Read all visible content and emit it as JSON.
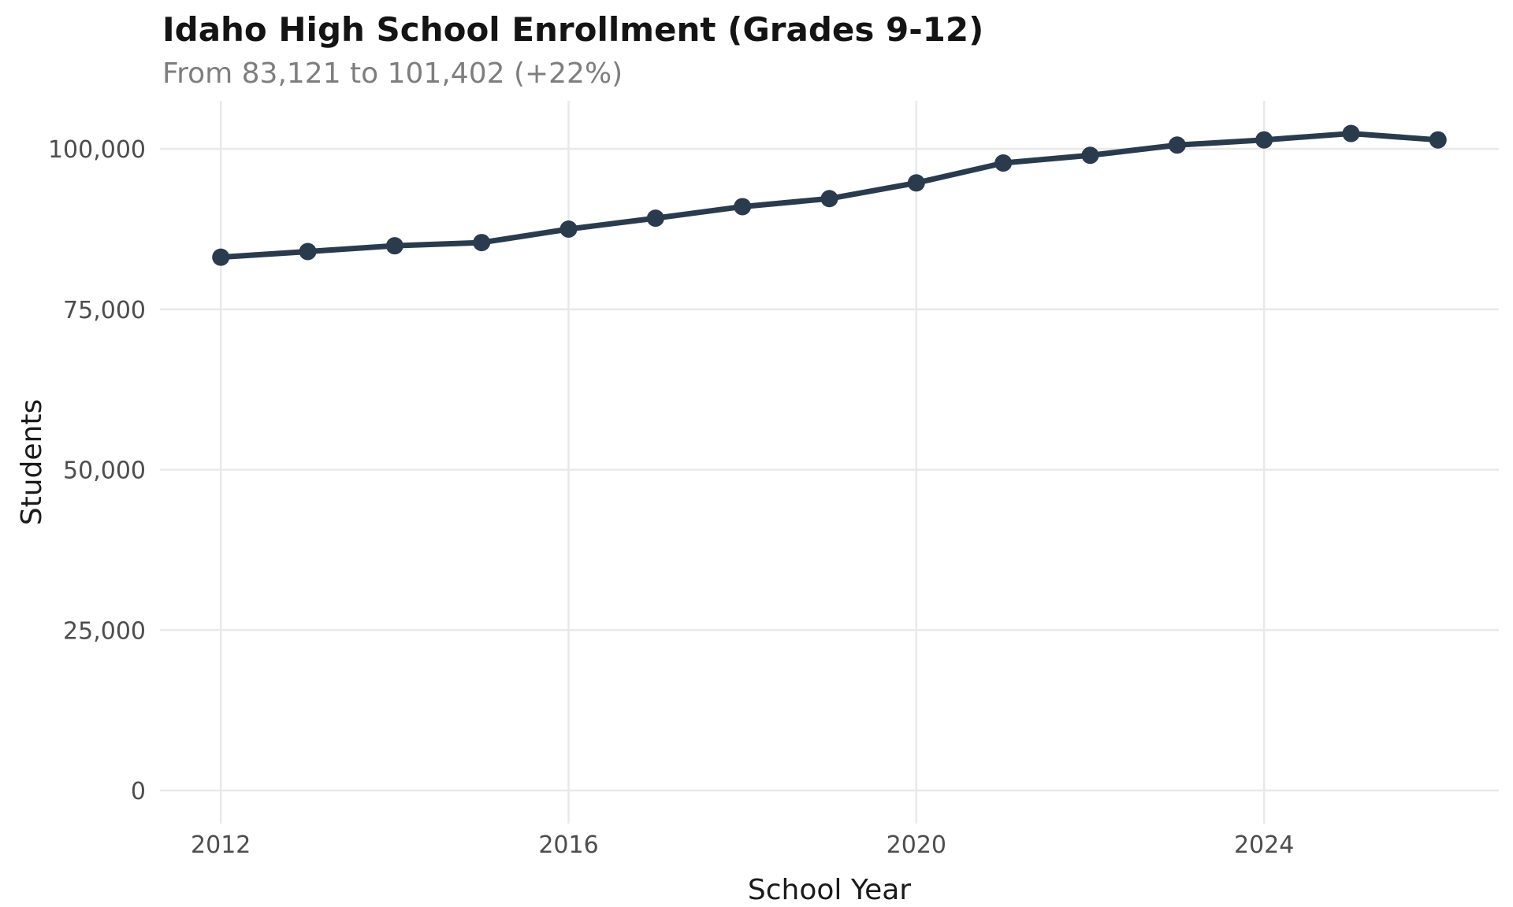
{
  "header": {
    "title": "Idaho High School Enrollment (Grades 9-12)",
    "subtitle": "From 83,121 to 101,402 (+22%)"
  },
  "chart_data": {
    "type": "line",
    "title": "Idaho High School Enrollment (Grades 9-12)",
    "subtitle": "From 83,121 to 101,402 (+22%)",
    "xlabel": "School Year",
    "ylabel": "Students",
    "series_name": "Enrollment (Grades 9-12)",
    "x": [
      2012,
      2013,
      2014,
      2015,
      2016,
      2017,
      2018,
      2019,
      2020,
      2021,
      2022,
      2023,
      2024,
      2025,
      2026
    ],
    "values": [
      83121,
      84000,
      84900,
      85400,
      87500,
      89200,
      91000,
      92250,
      94700,
      97800,
      99000,
      100600,
      101400,
      102400,
      101402
    ],
    "start_value": 83121,
    "end_value": 101402,
    "percent_change": "+22%",
    "xticks": [
      2012,
      2016,
      2020,
      2024
    ],
    "xtick_labels": [
      "2012",
      "2016",
      "2020",
      "2024"
    ],
    "yticks": [
      0,
      25000,
      50000,
      75000,
      100000
    ],
    "ytick_labels": [
      "0",
      "25,000",
      "50,000",
      "75,000",
      "100,000"
    ],
    "xlim": [
      2011.3,
      2026.7
    ],
    "ylim": [
      -5150,
      107500
    ],
    "grid": true,
    "legend": false,
    "colors": {
      "line": "#2b3b4e",
      "point": "#2b3b4e",
      "grid": "#e9e9e9",
      "tick_label": "#4d4d4d",
      "title": "#141414",
      "subtitle": "#7e7e7e",
      "axis_title": "#1a1a1a",
      "background": "#ffffff"
    }
  }
}
